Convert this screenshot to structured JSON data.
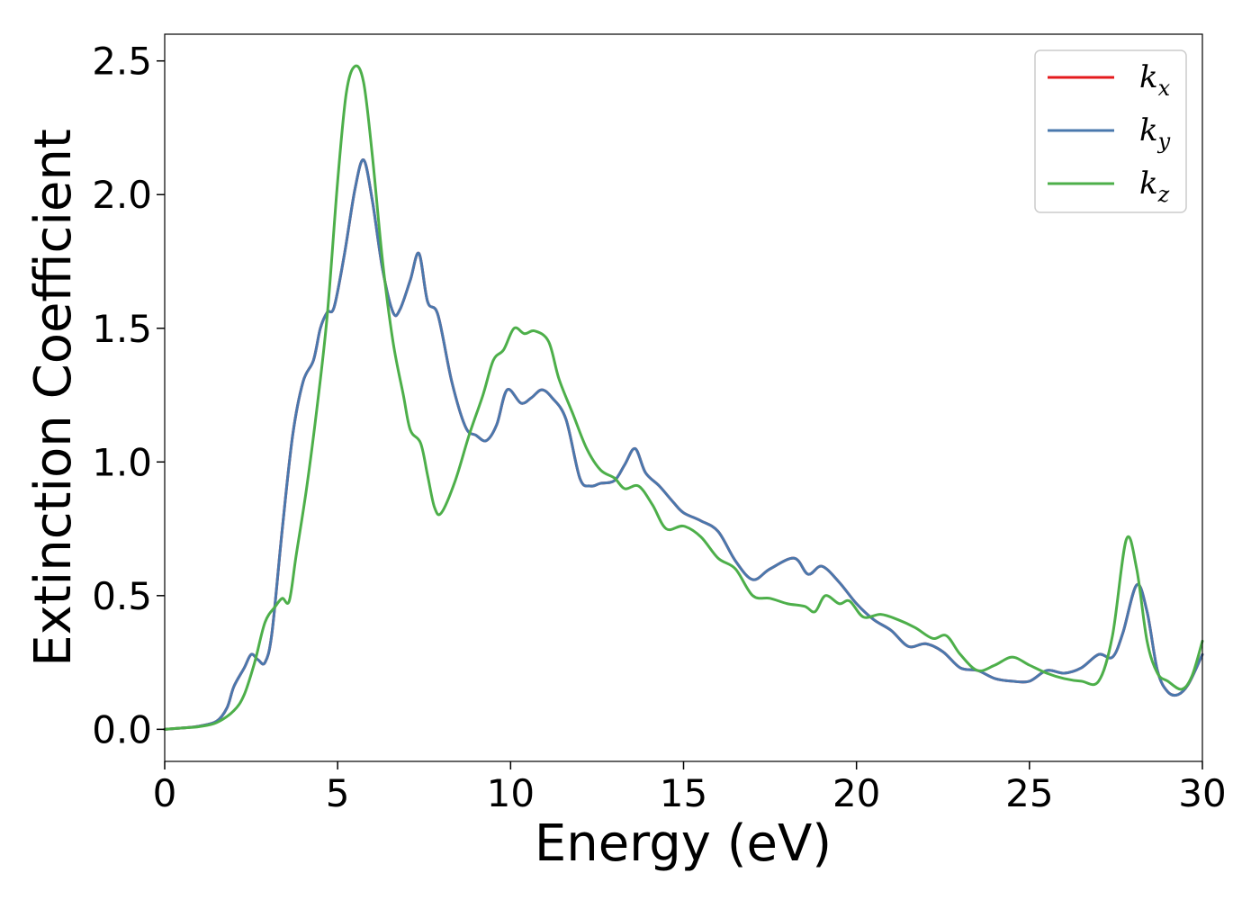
{
  "chart_data": {
    "type": "line",
    "xlabel": "Energy (eV)",
    "ylabel": "Extinction Coefficient",
    "xlim": [
      0,
      30
    ],
    "ylim": [
      -0.12,
      2.6
    ],
    "xticks": [
      0,
      5,
      10,
      15,
      20,
      25,
      30
    ],
    "yticks": [
      0.0,
      0.5,
      1.0,
      1.5,
      2.0,
      2.5
    ],
    "xtick_labels": [
      "0",
      "5",
      "10",
      "15",
      "20",
      "25",
      "30"
    ],
    "ytick_labels": [
      "0.0",
      "0.5",
      "1.0",
      "1.5",
      "2.0",
      "2.5"
    ],
    "grid": false,
    "legend_position": "top-right",
    "series": [
      {
        "name": "k_x",
        "legend_base": "k",
        "legend_sub": "x",
        "color": "#e41a1c",
        "points": [
          [
            0,
            0
          ],
          [
            0.5,
            0.005
          ],
          [
            1.0,
            0.012
          ],
          [
            1.5,
            0.03
          ],
          [
            1.8,
            0.08
          ],
          [
            2.0,
            0.16
          ],
          [
            2.3,
            0.23
          ],
          [
            2.5,
            0.28
          ],
          [
            2.7,
            0.26
          ],
          [
            2.9,
            0.25
          ],
          [
            3.1,
            0.36
          ],
          [
            3.4,
            0.75
          ],
          [
            3.7,
            1.1
          ],
          [
            4.0,
            1.3
          ],
          [
            4.3,
            1.38
          ],
          [
            4.5,
            1.5
          ],
          [
            4.7,
            1.56
          ],
          [
            4.9,
            1.58
          ],
          [
            5.2,
            1.78
          ],
          [
            5.5,
            2.02
          ],
          [
            5.75,
            2.13
          ],
          [
            6.0,
            1.98
          ],
          [
            6.3,
            1.72
          ],
          [
            6.6,
            1.56
          ],
          [
            6.8,
            1.57
          ],
          [
            7.1,
            1.68
          ],
          [
            7.35,
            1.78
          ],
          [
            7.6,
            1.6
          ],
          [
            7.9,
            1.55
          ],
          [
            8.3,
            1.3
          ],
          [
            8.7,
            1.13
          ],
          [
            9.0,
            1.1
          ],
          [
            9.3,
            1.08
          ],
          [
            9.6,
            1.14
          ],
          [
            9.9,
            1.27
          ],
          [
            10.3,
            1.22
          ],
          [
            10.6,
            1.24
          ],
          [
            10.9,
            1.27
          ],
          [
            11.2,
            1.24
          ],
          [
            11.6,
            1.16
          ],
          [
            12.0,
            0.94
          ],
          [
            12.3,
            0.91
          ],
          [
            12.6,
            0.92
          ],
          [
            13.0,
            0.93
          ],
          [
            13.3,
            0.99
          ],
          [
            13.6,
            1.05
          ],
          [
            13.9,
            0.96
          ],
          [
            14.3,
            0.91
          ],
          [
            14.7,
            0.85
          ],
          [
            15.0,
            0.81
          ],
          [
            15.5,
            0.78
          ],
          [
            16.0,
            0.74
          ],
          [
            16.5,
            0.63
          ],
          [
            17.0,
            0.56
          ],
          [
            17.5,
            0.6
          ],
          [
            18.2,
            0.64
          ],
          [
            18.6,
            0.58
          ],
          [
            19.0,
            0.61
          ],
          [
            19.5,
            0.55
          ],
          [
            20.0,
            0.47
          ],
          [
            20.5,
            0.41
          ],
          [
            21.0,
            0.37
          ],
          [
            21.5,
            0.31
          ],
          [
            22.0,
            0.32
          ],
          [
            22.5,
            0.29
          ],
          [
            23.0,
            0.23
          ],
          [
            23.5,
            0.22
          ],
          [
            24.0,
            0.19
          ],
          [
            24.5,
            0.18
          ],
          [
            25.0,
            0.18
          ],
          [
            25.5,
            0.22
          ],
          [
            26.0,
            0.21
          ],
          [
            26.5,
            0.23
          ],
          [
            27.0,
            0.28
          ],
          [
            27.4,
            0.27
          ],
          [
            27.7,
            0.36
          ],
          [
            28.1,
            0.54
          ],
          [
            28.4,
            0.44
          ],
          [
            28.7,
            0.22
          ],
          [
            29.0,
            0.14
          ],
          [
            29.3,
            0.13
          ],
          [
            29.6,
            0.17
          ],
          [
            30.0,
            0.28
          ]
        ]
      },
      {
        "name": "k_y",
        "legend_base": "k",
        "legend_sub": "y",
        "color": "#4a78ad",
        "points": [
          [
            0,
            0
          ],
          [
            0.5,
            0.005
          ],
          [
            1.0,
            0.012
          ],
          [
            1.5,
            0.03
          ],
          [
            1.8,
            0.08
          ],
          [
            2.0,
            0.16
          ],
          [
            2.3,
            0.23
          ],
          [
            2.5,
            0.28
          ],
          [
            2.7,
            0.26
          ],
          [
            2.9,
            0.25
          ],
          [
            3.1,
            0.36
          ],
          [
            3.4,
            0.75
          ],
          [
            3.7,
            1.1
          ],
          [
            4.0,
            1.3
          ],
          [
            4.3,
            1.38
          ],
          [
            4.5,
            1.5
          ],
          [
            4.7,
            1.56
          ],
          [
            4.9,
            1.58
          ],
          [
            5.2,
            1.78
          ],
          [
            5.5,
            2.02
          ],
          [
            5.75,
            2.13
          ],
          [
            6.0,
            1.98
          ],
          [
            6.3,
            1.72
          ],
          [
            6.6,
            1.56
          ],
          [
            6.8,
            1.57
          ],
          [
            7.1,
            1.68
          ],
          [
            7.35,
            1.78
          ],
          [
            7.6,
            1.6
          ],
          [
            7.9,
            1.55
          ],
          [
            8.3,
            1.3
          ],
          [
            8.7,
            1.13
          ],
          [
            9.0,
            1.1
          ],
          [
            9.3,
            1.08
          ],
          [
            9.6,
            1.14
          ],
          [
            9.9,
            1.27
          ],
          [
            10.3,
            1.22
          ],
          [
            10.6,
            1.24
          ],
          [
            10.9,
            1.27
          ],
          [
            11.2,
            1.24
          ],
          [
            11.6,
            1.16
          ],
          [
            12.0,
            0.94
          ],
          [
            12.3,
            0.91
          ],
          [
            12.6,
            0.92
          ],
          [
            13.0,
            0.93
          ],
          [
            13.3,
            0.99
          ],
          [
            13.6,
            1.05
          ],
          [
            13.9,
            0.96
          ],
          [
            14.3,
            0.91
          ],
          [
            14.7,
            0.85
          ],
          [
            15.0,
            0.81
          ],
          [
            15.5,
            0.78
          ],
          [
            16.0,
            0.74
          ],
          [
            16.5,
            0.63
          ],
          [
            17.0,
            0.56
          ],
          [
            17.5,
            0.6
          ],
          [
            18.2,
            0.64
          ],
          [
            18.6,
            0.58
          ],
          [
            19.0,
            0.61
          ],
          [
            19.5,
            0.55
          ],
          [
            20.0,
            0.47
          ],
          [
            20.5,
            0.41
          ],
          [
            21.0,
            0.37
          ],
          [
            21.5,
            0.31
          ],
          [
            22.0,
            0.32
          ],
          [
            22.5,
            0.29
          ],
          [
            23.0,
            0.23
          ],
          [
            23.5,
            0.22
          ],
          [
            24.0,
            0.19
          ],
          [
            24.5,
            0.18
          ],
          [
            25.0,
            0.18
          ],
          [
            25.5,
            0.22
          ],
          [
            26.0,
            0.21
          ],
          [
            26.5,
            0.23
          ],
          [
            27.0,
            0.28
          ],
          [
            27.4,
            0.27
          ],
          [
            27.7,
            0.36
          ],
          [
            28.1,
            0.54
          ],
          [
            28.4,
            0.44
          ],
          [
            28.7,
            0.22
          ],
          [
            29.0,
            0.14
          ],
          [
            29.3,
            0.13
          ],
          [
            29.6,
            0.17
          ],
          [
            30.0,
            0.28
          ]
        ]
      },
      {
        "name": "k_z",
        "legend_base": "k",
        "legend_sub": "z",
        "color": "#4daf4a",
        "points": [
          [
            0,
            0
          ],
          [
            0.5,
            0.005
          ],
          [
            1.0,
            0.01
          ],
          [
            1.5,
            0.025
          ],
          [
            2.0,
            0.07
          ],
          [
            2.3,
            0.13
          ],
          [
            2.6,
            0.25
          ],
          [
            2.9,
            0.4
          ],
          [
            3.2,
            0.46
          ],
          [
            3.4,
            0.49
          ],
          [
            3.6,
            0.48
          ],
          [
            3.8,
            0.65
          ],
          [
            4.1,
            0.9
          ],
          [
            4.4,
            1.2
          ],
          [
            4.7,
            1.55
          ],
          [
            5.0,
            2.05
          ],
          [
            5.25,
            2.38
          ],
          [
            5.5,
            2.48
          ],
          [
            5.75,
            2.42
          ],
          [
            6.0,
            2.15
          ],
          [
            6.3,
            1.75
          ],
          [
            6.6,
            1.45
          ],
          [
            6.9,
            1.25
          ],
          [
            7.1,
            1.12
          ],
          [
            7.4,
            1.07
          ],
          [
            7.6,
            0.95
          ],
          [
            7.8,
            0.83
          ],
          [
            8.0,
            0.81
          ],
          [
            8.4,
            0.93
          ],
          [
            8.8,
            1.1
          ],
          [
            9.2,
            1.25
          ],
          [
            9.5,
            1.38
          ],
          [
            9.8,
            1.42
          ],
          [
            10.1,
            1.5
          ],
          [
            10.4,
            1.48
          ],
          [
            10.7,
            1.49
          ],
          [
            11.1,
            1.45
          ],
          [
            11.4,
            1.31
          ],
          [
            11.8,
            1.18
          ],
          [
            12.2,
            1.05
          ],
          [
            12.6,
            0.97
          ],
          [
            13.0,
            0.94
          ],
          [
            13.3,
            0.9
          ],
          [
            13.7,
            0.91
          ],
          [
            14.1,
            0.84
          ],
          [
            14.5,
            0.75
          ],
          [
            15.0,
            0.76
          ],
          [
            15.5,
            0.72
          ],
          [
            16.0,
            0.64
          ],
          [
            16.5,
            0.6
          ],
          [
            17.0,
            0.5
          ],
          [
            17.5,
            0.49
          ],
          [
            18.0,
            0.47
          ],
          [
            18.5,
            0.46
          ],
          [
            18.8,
            0.44
          ],
          [
            19.1,
            0.5
          ],
          [
            19.5,
            0.47
          ],
          [
            19.8,
            0.48
          ],
          [
            20.2,
            0.42
          ],
          [
            20.7,
            0.43
          ],
          [
            21.2,
            0.41
          ],
          [
            21.7,
            0.38
          ],
          [
            22.2,
            0.34
          ],
          [
            22.6,
            0.35
          ],
          [
            23.0,
            0.28
          ],
          [
            23.5,
            0.22
          ],
          [
            24.0,
            0.24
          ],
          [
            24.5,
            0.27
          ],
          [
            25.0,
            0.24
          ],
          [
            25.5,
            0.21
          ],
          [
            26.0,
            0.19
          ],
          [
            26.5,
            0.18
          ],
          [
            27.0,
            0.18
          ],
          [
            27.4,
            0.35
          ],
          [
            27.8,
            0.71
          ],
          [
            28.1,
            0.6
          ],
          [
            28.4,
            0.33
          ],
          [
            28.7,
            0.21
          ],
          [
            29.0,
            0.18
          ],
          [
            29.4,
            0.15
          ],
          [
            29.7,
            0.2
          ],
          [
            30.0,
            0.33
          ]
        ]
      }
    ]
  }
}
